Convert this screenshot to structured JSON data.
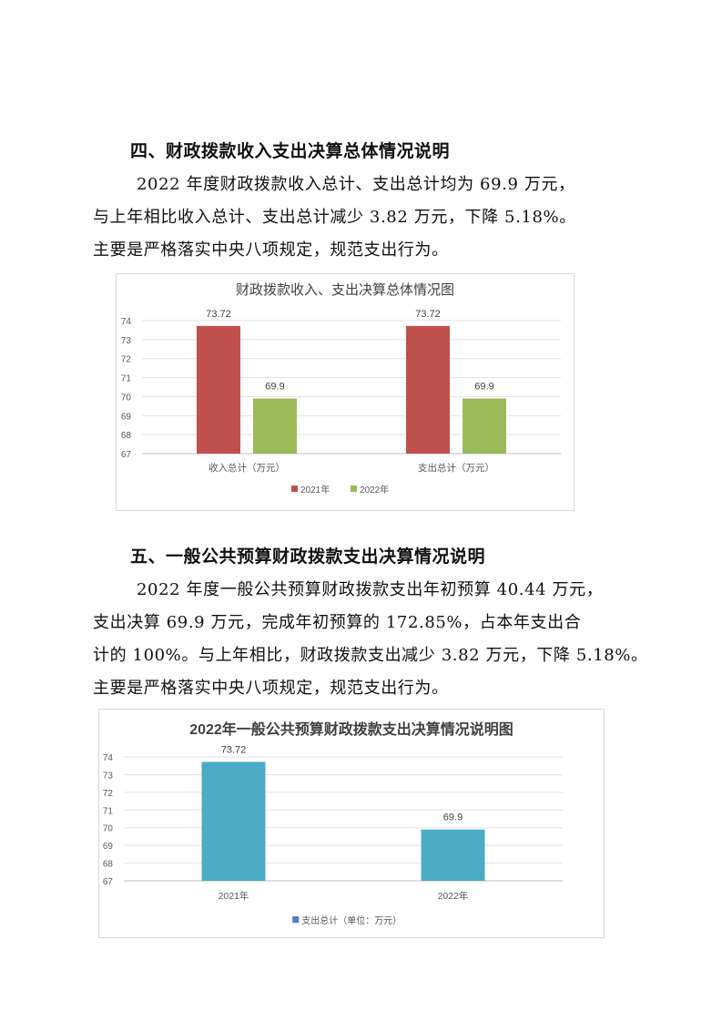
{
  "section4": {
    "heading": "四、财政拨款收入支出决算总体情况说明",
    "lines": [
      "2022 年度财政拨款收入总计、支出总计均为 69.9 万元，",
      "与上年相比收入总计、支出总计减少 3.82 万元，下降 5.18%。",
      "主要是严格落实中央八项规定，规范支出行为。"
    ]
  },
  "section5": {
    "heading": "五、一般公共预算财政拨款支出决算情况说明",
    "lines": [
      "2022 年度一般公共预算财政拨款支出年初预算 40.44 万元，",
      "支出决算 69.9 万元，完成年初预算的 172.85%，占本年支出合",
      "计的 100%。与上年相比，财政拨款支出减少 3.82 万元，下降 5.18%。",
      "主要是严格落实中央八项规定，规范支出行为。"
    ]
  },
  "chart_data": [
    {
      "type": "bar",
      "title": "财政拨款收入、支出决算总体情况图",
      "categories": [
        "收入总计（万元）",
        "支出总计（万元）"
      ],
      "series": [
        {
          "name": "2021年",
          "values": [
            73.72,
            73.72
          ],
          "color": "#c0504d"
        },
        {
          "name": "2022年",
          "values": [
            69.9,
            69.9
          ],
          "color": "#9bbb59"
        }
      ],
      "ylim": [
        67,
        74
      ],
      "yticks": [
        "67",
        "68",
        "69",
        "70",
        "71",
        "72",
        "73",
        "74"
      ],
      "grid": true,
      "legend": "bottom"
    },
    {
      "type": "bar",
      "title": "2022年一般公共预算财政拨款支出决算情况说明图",
      "categories": [
        "2021年",
        "2022年"
      ],
      "series": [
        {
          "name": "支出总计（单位：万元）",
          "values": [
            73.72,
            69.9
          ],
          "color": "#4bacc6",
          "legend_color": "#4f81bd"
        }
      ],
      "ylim": [
        67,
        74
      ],
      "yticks": [
        "67",
        "68",
        "69",
        "70",
        "71",
        "72",
        "73",
        "74"
      ],
      "grid": true,
      "legend": "bottom"
    }
  ]
}
